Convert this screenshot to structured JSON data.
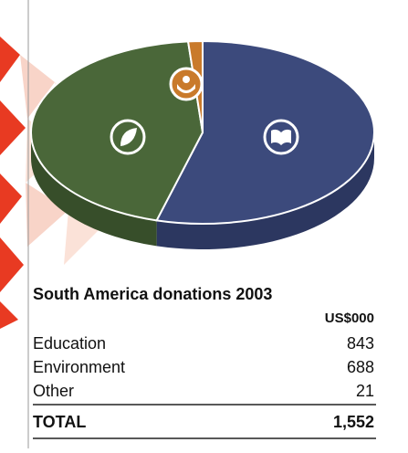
{
  "chart_data": {
    "type": "pie",
    "title": "South America donations 2003",
    "value_header": "US$000",
    "categories": [
      "Education",
      "Environment",
      "Other"
    ],
    "values": [
      843,
      688,
      21
    ],
    "colors": [
      "#3c4a7c",
      "#4a6739",
      "#c97a2b"
    ],
    "side_colors": [
      "#2c3760",
      "#374e2a",
      "#9c5c1c"
    ],
    "total_label": "TOTAL",
    "total": {
      "value": 1552,
      "label": "1,552"
    }
  }
}
